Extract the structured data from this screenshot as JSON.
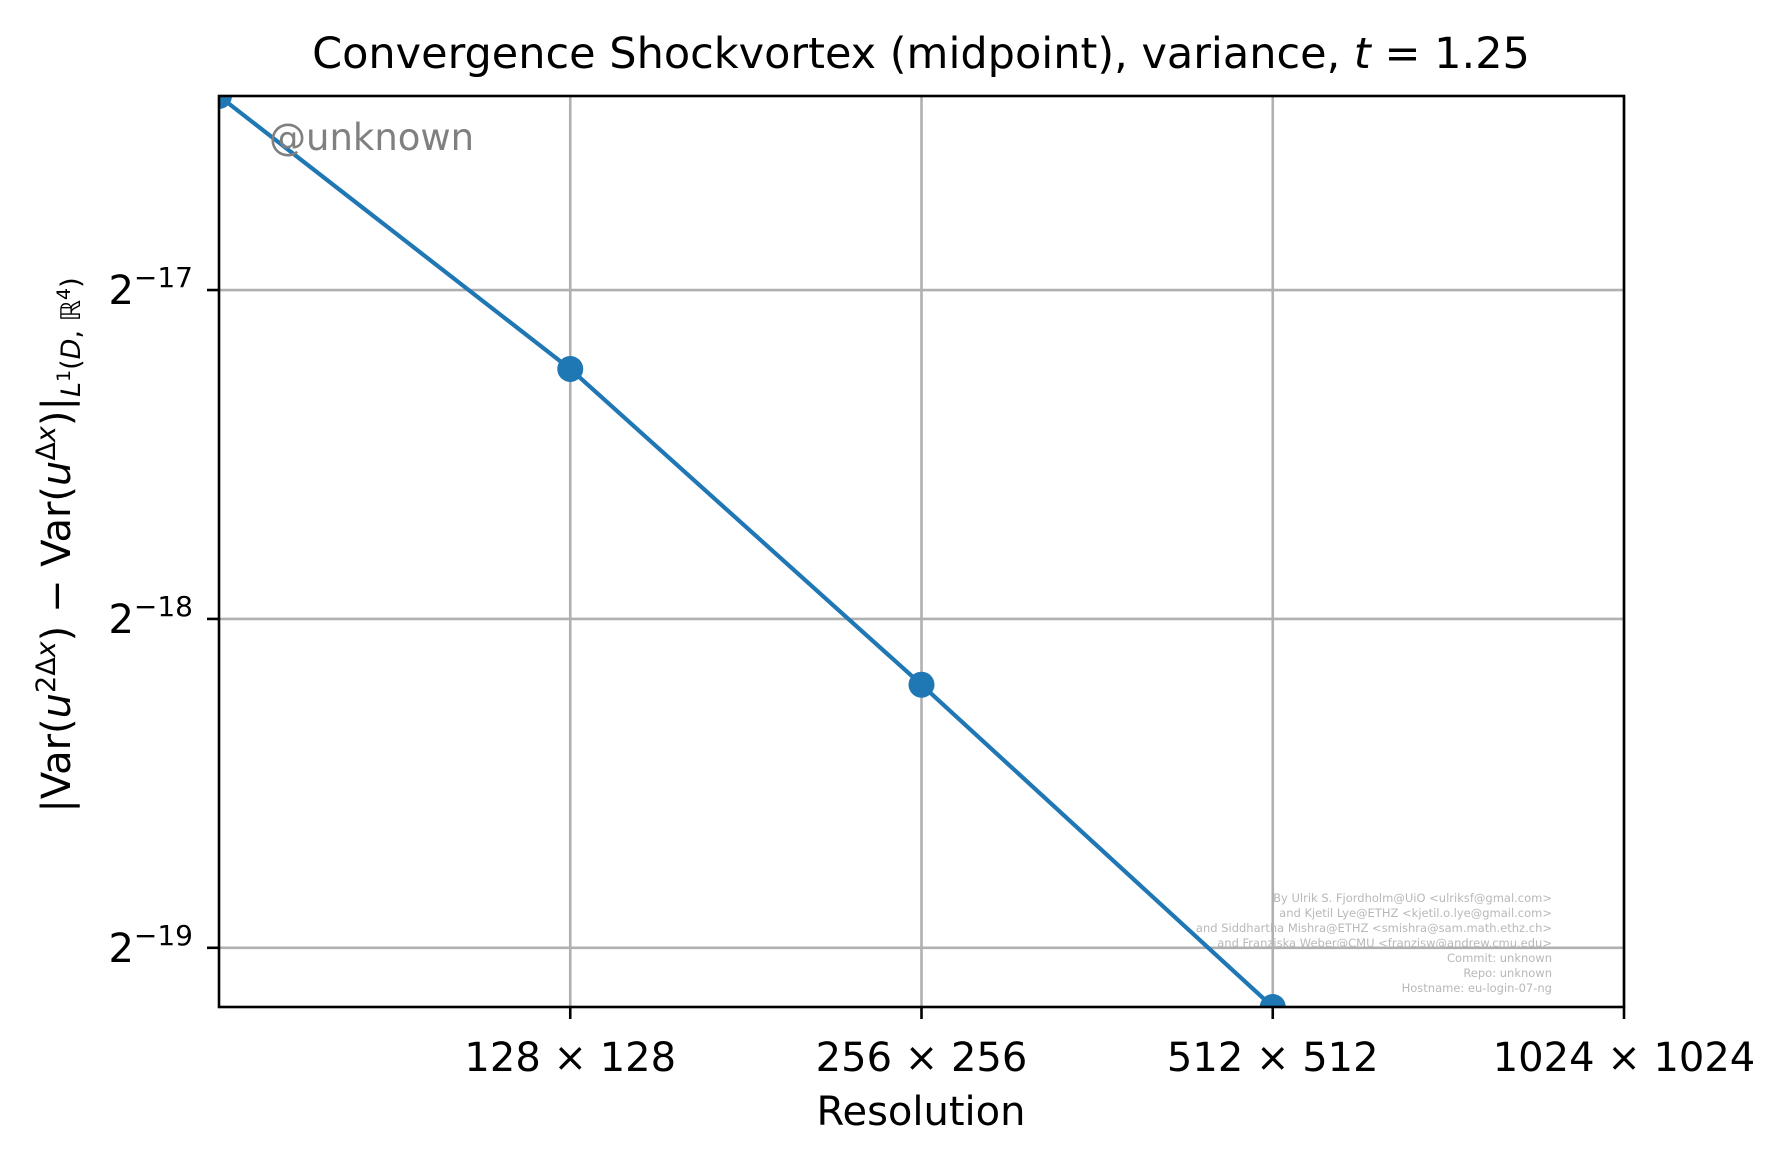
{
  "chart_data": {
    "type": "line",
    "title": "Convergence Shockvortex (midpoint), variance, t = 1.25",
    "xlabel": "Resolution",
    "ylabel": "|Var(u^{2Δx}) − Var(u^{Δx})|_{L^1(D, ℝ^4)}",
    "x_scale": "log2",
    "y_scale": "log2",
    "x_range_resolution": [
      64,
      1024
    ],
    "y_range_log2": [
      -19.18,
      -16.41
    ],
    "x_ticks": [
      {
        "value": 128,
        "label": "128 × 128"
      },
      {
        "value": 256,
        "label": "256 × 256"
      },
      {
        "value": 512,
        "label": "512 × 512"
      },
      {
        "value": 1024,
        "label": "1024 × 1024"
      }
    ],
    "y_ticks": [
      {
        "exponent": -17,
        "label_base": "2",
        "label_exp": "−17"
      },
      {
        "exponent": -18,
        "label_base": "2",
        "label_exp": "−18"
      },
      {
        "exponent": -19,
        "label_base": "2",
        "label_exp": "−19"
      }
    ],
    "grid": true,
    "color": "#1f77b4",
    "series": [
      {
        "x": [
          64,
          128,
          256,
          512
        ],
        "y_log2": [
          -16.41,
          -17.24,
          -18.2,
          -19.18
        ]
      }
    ]
  },
  "watermark": "@unknown",
  "credits": [
    "By Ulrik S. Fjordholm@UiO <ulriksf@gmal.com>",
    "and Kjetil Lye@ETHZ <kjetil.o.lye@gmail.com>",
    "and Siddhartha Mishra@ETHZ <smishra@sam.math.ethz.ch>",
    "and Franziska Weber@CMU <franzisw@andrew.cmu.edu>",
    "Commit: unknown",
    "Repo: unknown",
    "Hostname: eu-login-07-ng"
  ]
}
